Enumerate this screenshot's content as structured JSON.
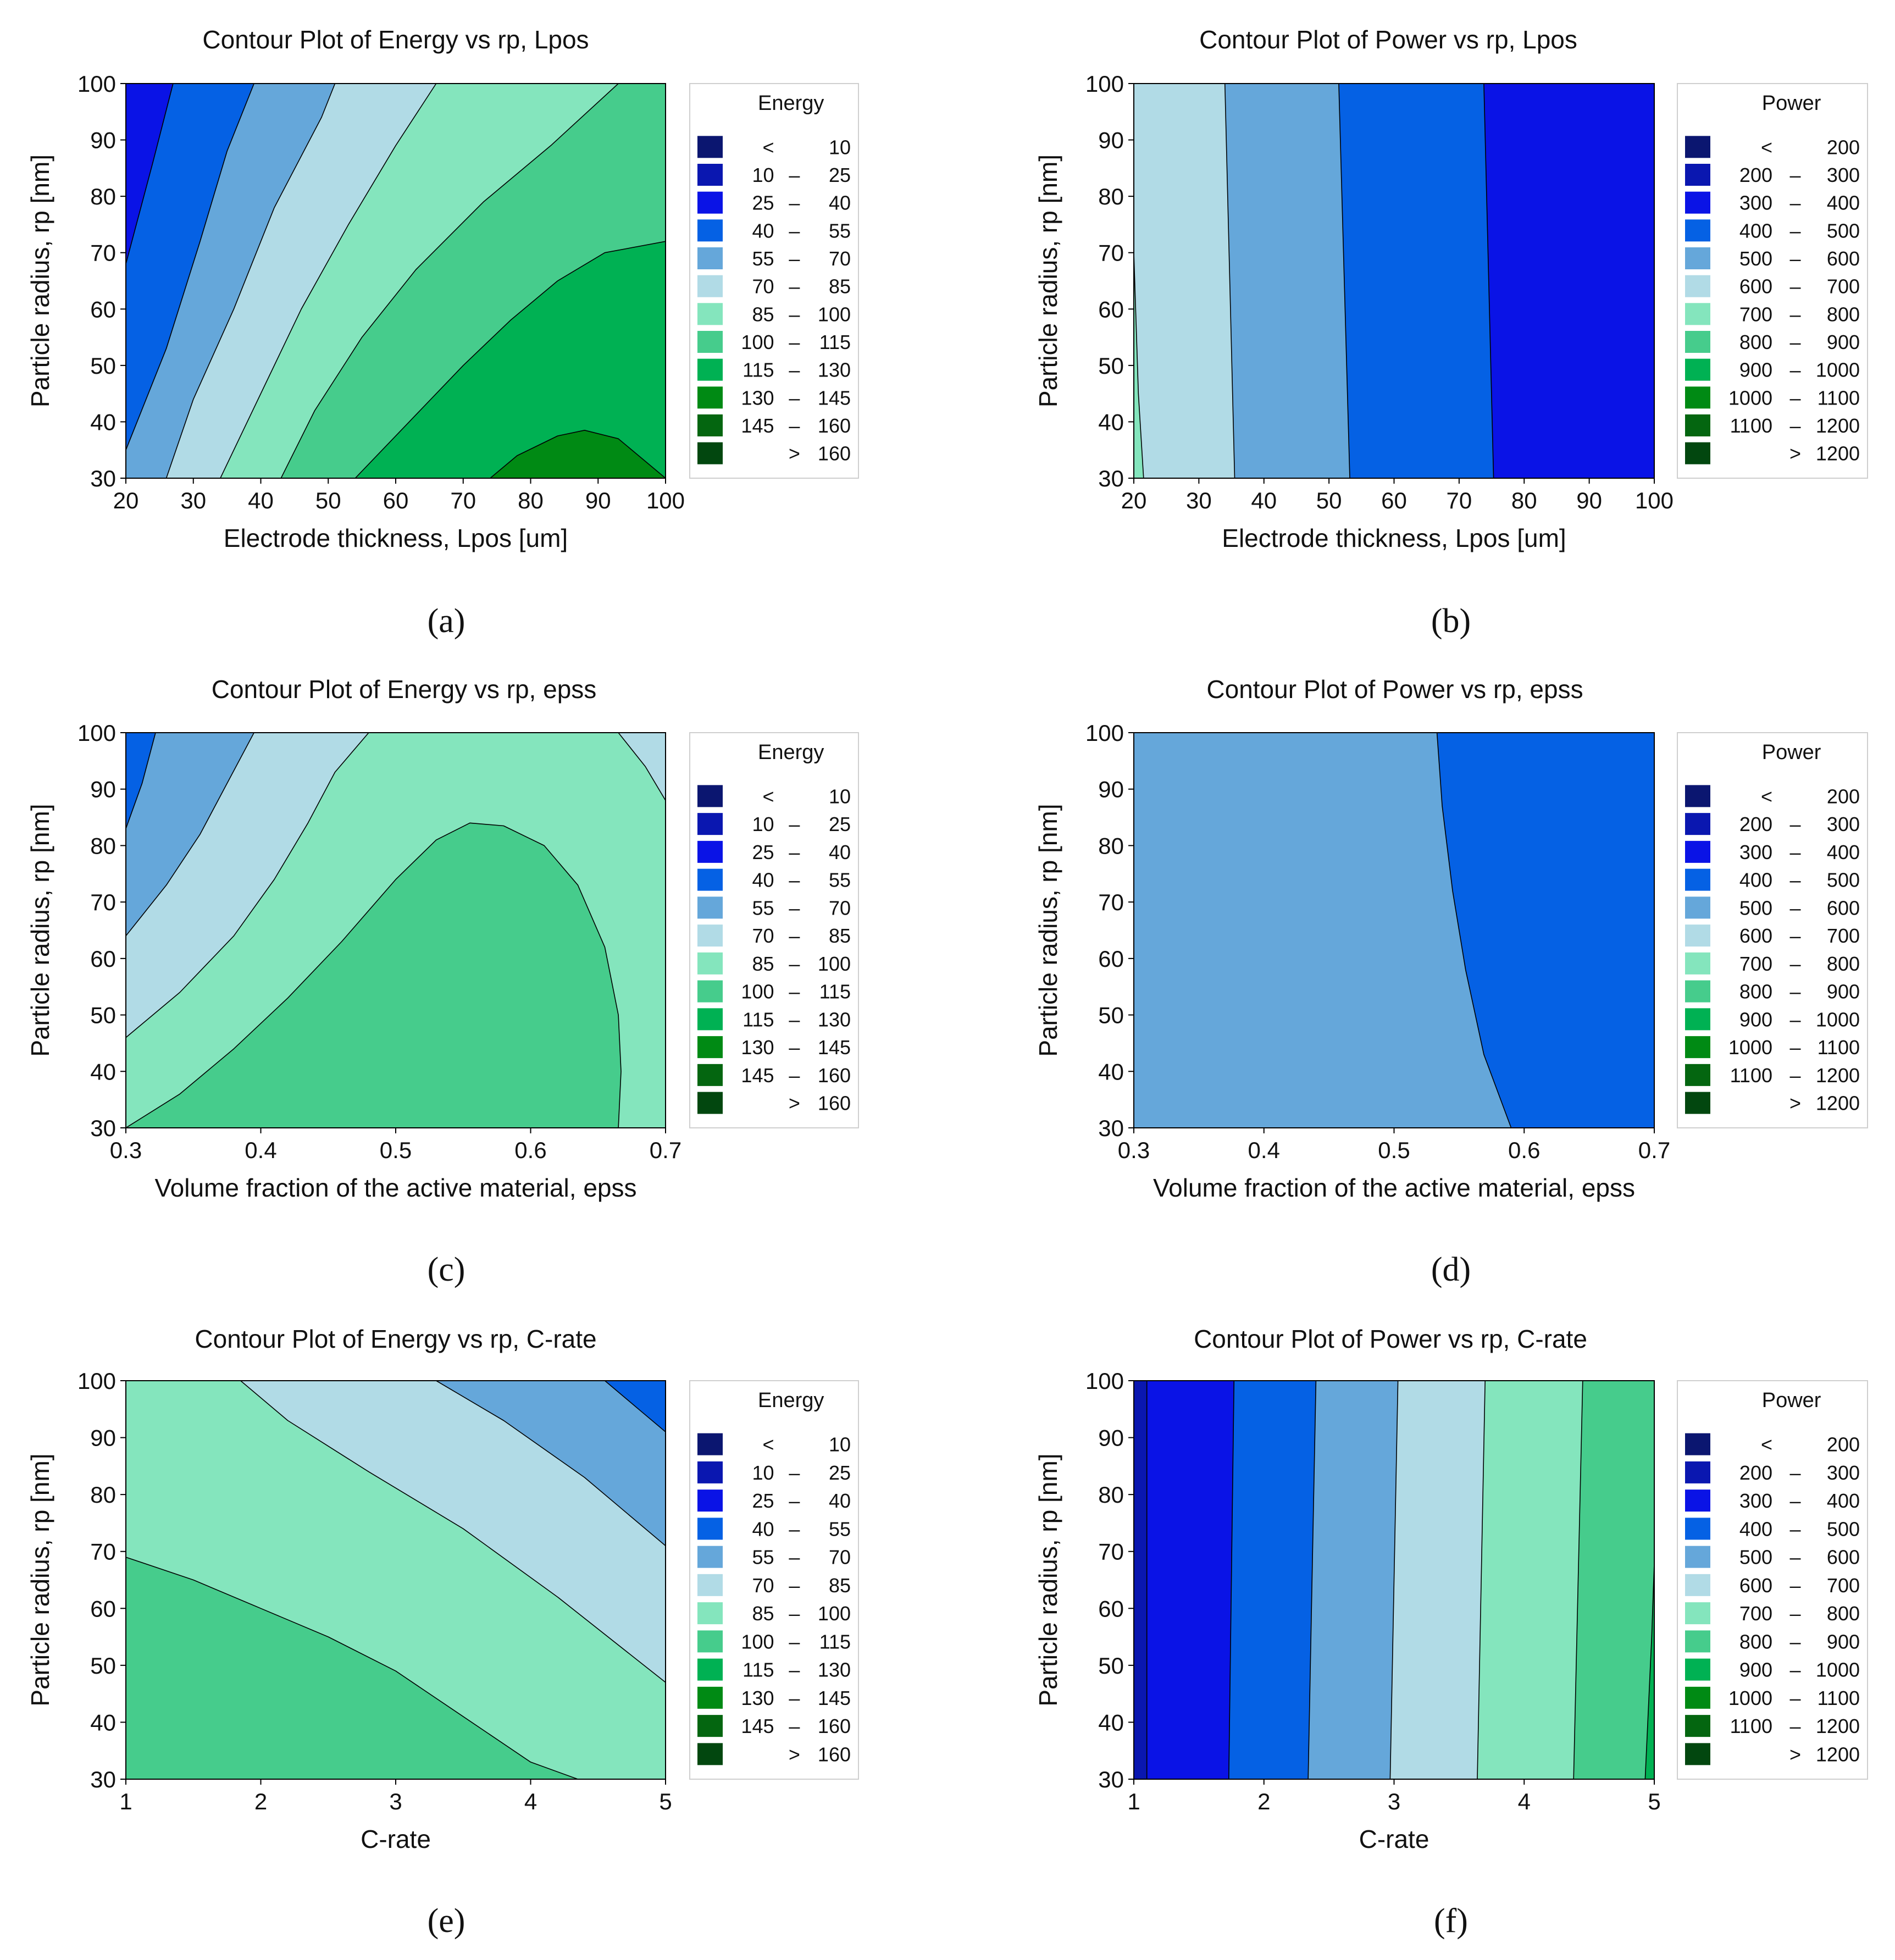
{
  "legend_scales": {
    "energy": {
      "title": "Energy",
      "rows": [
        {
          "lo": "<",
          "dash": "",
          "hi": "10",
          "color": "#0b1670"
        },
        {
          "lo": "10",
          "dash": "–",
          "hi": "25",
          "color": "#0a17b0"
        },
        {
          "lo": "25",
          "dash": "–",
          "hi": "40",
          "color": "#0a13e6"
        },
        {
          "lo": "40",
          "dash": "–",
          "hi": "55",
          "color": "#0561e4"
        },
        {
          "lo": "55",
          "dash": "–",
          "hi": "70",
          "color": "#65a7da"
        },
        {
          "lo": "70",
          "dash": "–",
          "hi": "85",
          "color": "#b1dbe6"
        },
        {
          "lo": "85",
          "dash": "–",
          "hi": "100",
          "color": "#84e5bd"
        },
        {
          "lo": "100",
          "dash": "–",
          "hi": "115",
          "color": "#46cc8c"
        },
        {
          "lo": "115",
          "dash": "–",
          "hi": "130",
          "color": "#00b153"
        },
        {
          "lo": "130",
          "dash": "–",
          "hi": "145",
          "color": "#008a14"
        },
        {
          "lo": "145",
          "dash": "–",
          "hi": "160",
          "color": "#046610"
        },
        {
          "lo": "",
          "dash": ">",
          "hi": "160",
          "color": "#02470f"
        }
      ]
    },
    "power": {
      "title": "Power",
      "rows": [
        {
          "lo": "<",
          "dash": "",
          "hi": "200",
          "color": "#0b1670"
        },
        {
          "lo": "200",
          "dash": "–",
          "hi": "300",
          "color": "#0a17b0"
        },
        {
          "lo": "300",
          "dash": "–",
          "hi": "400",
          "color": "#0a13e6"
        },
        {
          "lo": "400",
          "dash": "–",
          "hi": "500",
          "color": "#0561e4"
        },
        {
          "lo": "500",
          "dash": "–",
          "hi": "600",
          "color": "#65a7da"
        },
        {
          "lo": "600",
          "dash": "–",
          "hi": "700",
          "color": "#b1dbe6"
        },
        {
          "lo": "700",
          "dash": "–",
          "hi": "800",
          "color": "#84e5bd"
        },
        {
          "lo": "800",
          "dash": "–",
          "hi": "900",
          "color": "#46cc8c"
        },
        {
          "lo": "900",
          "dash": "–",
          "hi": "1000",
          "color": "#00b153"
        },
        {
          "lo": "1000",
          "dash": "–",
          "hi": "1100",
          "color": "#008a14"
        },
        {
          "lo": "1100",
          "dash": "–",
          "hi": "1200",
          "color": "#046610"
        },
        {
          "lo": "",
          "dash": ">",
          "hi": "1200",
          "color": "#02470f"
        }
      ]
    }
  },
  "chart_data": [
    {
      "type": "contour",
      "panel": "a",
      "caption": "(a)",
      "title": "Contour Plot of Energy vs rp, Lpos",
      "xlabel": "Electrode thickness, Lpos [um]",
      "ylabel": "Particle radius, rp [nm]",
      "xlim": [
        20,
        100
      ],
      "ylim": [
        30,
        100
      ],
      "xticks": [
        20,
        30,
        40,
        50,
        60,
        70,
        80,
        90,
        100
      ],
      "yticks": [
        30,
        40,
        50,
        60,
        70,
        80,
        90,
        100
      ],
      "legend": "energy",
      "background_band": 7,
      "regions": [
        {
          "band": 8,
          "points": [
            [
              54,
              30
            ],
            [
              62,
              40
            ],
            [
              70,
              50
            ],
            [
              77,
              58
            ],
            [
              84,
              65
            ],
            [
              91,
              70
            ],
            [
              100,
              72
            ],
            [
              100,
              30
            ]
          ]
        },
        {
          "band": 9,
          "points": [
            [
              74,
              30
            ],
            [
              78,
              34
            ],
            [
              84,
              37.5
            ],
            [
              88,
              38.5
            ],
            [
              93,
              37
            ],
            [
              97,
              33
            ],
            [
              100,
              30
            ]
          ]
        },
        {
          "band": 6,
          "points": [
            [
              20,
              100
            ],
            [
              20,
              30
            ],
            [
              43,
              30
            ],
            [
              48,
              42
            ],
            [
              55,
              55
            ],
            [
              63,
              67
            ],
            [
              73,
              79
            ],
            [
              83,
              89
            ],
            [
              93,
              100
            ]
          ]
        },
        {
          "band": 5,
          "points": [
            [
              20,
              100
            ],
            [
              20,
              30
            ],
            [
              34,
              30
            ],
            [
              40,
              45
            ],
            [
              46,
              60
            ],
            [
              53,
              75
            ],
            [
              60,
              89
            ],
            [
              66,
              100
            ]
          ]
        },
        {
          "band": 4,
          "points": [
            [
              20,
              100
            ],
            [
              20,
              30
            ],
            [
              26,
              30
            ],
            [
              30,
              44
            ],
            [
              36,
              60
            ],
            [
              42,
              78
            ],
            [
              49,
              94
            ],
            [
              51,
              100
            ]
          ]
        },
        {
          "band": 3,
          "points": [
            [
              20,
              100
            ],
            [
              20,
              35
            ],
            [
              26,
              53
            ],
            [
              31,
              72
            ],
            [
              35,
              88
            ],
            [
              39,
              100
            ]
          ]
        },
        {
          "band": 2,
          "points": [
            [
              20,
              100
            ],
            [
              20,
              68
            ],
            [
              24,
              86
            ],
            [
              27,
              100
            ]
          ]
        }
      ]
    },
    {
      "type": "contour",
      "panel": "b",
      "caption": "(b)",
      "title": "Contour Plot of Power vs rp, Lpos",
      "xlabel": "Electrode thickness, Lpos [um]",
      "ylabel": "Particle radius, rp [nm]",
      "xlim": [
        20,
        100
      ],
      "ylim": [
        30,
        100
      ],
      "xticks": [
        20,
        30,
        40,
        50,
        60,
        70,
        80,
        90,
        100
      ],
      "yticks": [
        30,
        40,
        50,
        60,
        70,
        80,
        90,
        100
      ],
      "legend": "power",
      "background_band": 2,
      "regions": [
        {
          "band": 3,
          "points": [
            [
              20,
              30
            ],
            [
              20,
              100
            ],
            [
              73.8,
              100
            ],
            [
              75.3,
              30
            ]
          ]
        },
        {
          "band": 4,
          "points": [
            [
              20,
              30
            ],
            [
              20,
              100
            ],
            [
              51.5,
              100
            ],
            [
              53.2,
              30
            ]
          ]
        },
        {
          "band": 5,
          "points": [
            [
              20,
              30
            ],
            [
              20,
              100
            ],
            [
              34,
              100
            ],
            [
              35.5,
              30
            ]
          ]
        },
        {
          "band": 6,
          "points": [
            [
              20,
              30
            ],
            [
              20,
              70
            ],
            [
              20.7,
              45
            ],
            [
              21.5,
              30
            ]
          ]
        }
      ]
    },
    {
      "type": "contour",
      "panel": "c",
      "caption": "(c)",
      "title": "Contour Plot of Energy vs rp, epss",
      "xlabel": "Volume fraction of the active material, epss",
      "ylabel": "Particle radius, rp [nm]",
      "xlim": [
        0.3,
        0.7
      ],
      "ylim": [
        30,
        100
      ],
      "xticks": [
        0.3,
        0.4,
        0.5,
        0.6,
        0.7
      ],
      "yticks": [
        30,
        40,
        50,
        60,
        70,
        80,
        90,
        100
      ],
      "legend": "energy",
      "background_band": 6,
      "regions": [
        {
          "band": 7,
          "points": [
            [
              0.3,
              30
            ],
            [
              0.34,
              36
            ],
            [
              0.38,
              44
            ],
            [
              0.42,
              53
            ],
            [
              0.46,
              63
            ],
            [
              0.5,
              74
            ],
            [
              0.53,
              81
            ],
            [
              0.555,
              84
            ],
            [
              0.58,
              83.5
            ],
            [
              0.61,
              80
            ],
            [
              0.635,
              73
            ],
            [
              0.655,
              62
            ],
            [
              0.665,
              50
            ],
            [
              0.667,
              40
            ],
            [
              0.665,
              30
            ]
          ]
        },
        {
          "band": 5,
          "points": [
            [
              0.3,
              46
            ],
            [
              0.34,
              54
            ],
            [
              0.38,
              64
            ],
            [
              0.41,
              74
            ],
            [
              0.435,
              84
            ],
            [
              0.455,
              93
            ],
            [
              0.48,
              100
            ],
            [
              0.3,
              100
            ]
          ]
        },
        {
          "band": 5,
          "points": [
            [
              0.665,
              100
            ],
            [
              0.7,
              100
            ],
            [
              0.7,
              88
            ],
            [
              0.685,
              94
            ]
          ]
        },
        {
          "band": 4,
          "points": [
            [
              0.3,
              64
            ],
            [
              0.33,
              73
            ],
            [
              0.355,
              82
            ],
            [
              0.375,
              91
            ],
            [
              0.395,
              100
            ],
            [
              0.3,
              100
            ]
          ]
        },
        {
          "band": 3,
          "points": [
            [
              0.3,
              83
            ],
            [
              0.312,
              91
            ],
            [
              0.322,
              100
            ],
            [
              0.3,
              100
            ]
          ]
        }
      ]
    },
    {
      "type": "contour",
      "panel": "d",
      "caption": "(d)",
      "title": "Contour Plot of Power vs rp, epss",
      "xlabel": "Volume fraction of the active material, epss",
      "ylabel": "Particle radius, rp [nm]",
      "xlim": [
        0.3,
        0.7
      ],
      "ylim": [
        30,
        100
      ],
      "xticks": [
        0.3,
        0.4,
        0.5,
        0.6,
        0.7
      ],
      "yticks": [
        30,
        40,
        50,
        60,
        70,
        80,
        90,
        100
      ],
      "legend": "power",
      "background_band": 4,
      "regions": [
        {
          "band": 3,
          "points": [
            [
              0.533,
              100
            ],
            [
              0.537,
              87
            ],
            [
              0.545,
              72
            ],
            [
              0.555,
              58
            ],
            [
              0.569,
              43
            ],
            [
              0.59,
              30
            ],
            [
              0.7,
              30
            ],
            [
              0.7,
              100
            ]
          ]
        }
      ]
    },
    {
      "type": "contour",
      "panel": "e",
      "caption": "(e)",
      "title": "Contour Plot of Energy vs rp, C-rate",
      "xlabel": "C-rate",
      "ylabel": "Particle radius, rp [nm]",
      "xlim": [
        1,
        5
      ],
      "ylim": [
        30,
        100
      ],
      "xticks": [
        1,
        2,
        3,
        4,
        5
      ],
      "yticks": [
        30,
        40,
        50,
        60,
        70,
        80,
        90,
        100
      ],
      "legend": "energy",
      "background_band": 6,
      "regions": [
        {
          "band": 7,
          "points": [
            [
              1,
              30
            ],
            [
              1,
              69
            ],
            [
              1.5,
              65
            ],
            [
              2,
              60
            ],
            [
              2.5,
              55
            ],
            [
              3,
              49
            ],
            [
              3.5,
              41
            ],
            [
              4,
              33
            ],
            [
              4.35,
              30
            ]
          ]
        },
        {
          "band": 5,
          "points": [
            [
              1.85,
              100
            ],
            [
              2.2,
              93
            ],
            [
              2.8,
              84
            ],
            [
              3.5,
              74
            ],
            [
              4.2,
              62
            ],
            [
              5,
              47
            ],
            [
              5,
              100
            ]
          ]
        },
        {
          "band": 4,
          "points": [
            [
              3.3,
              100
            ],
            [
              3.8,
              93
            ],
            [
              4.4,
              83
            ],
            [
              5,
              71
            ],
            [
              5,
              100
            ]
          ]
        },
        {
          "band": 3,
          "points": [
            [
              4.55,
              100
            ],
            [
              4.8,
              95
            ],
            [
              5,
              91
            ],
            [
              5,
              100
            ]
          ]
        }
      ]
    },
    {
      "type": "contour",
      "panel": "f",
      "caption": "(f)",
      "title": "Contour Plot of Power vs rp, C-rate",
      "xlabel": "C-rate",
      "ylabel": "Particle radius, rp [nm]",
      "xlim": [
        1,
        5
      ],
      "ylim": [
        30,
        100
      ],
      "xticks": [
        1,
        2,
        3,
        4,
        5
      ],
      "yticks": [
        30,
        40,
        50,
        60,
        70,
        80,
        90,
        100
      ],
      "legend": "power",
      "background_band": 7,
      "regions": [
        {
          "band": 6,
          "points": [
            [
              1,
              30
            ],
            [
              1,
              100
            ],
            [
              4.45,
              100
            ],
            [
              4.38,
              30
            ]
          ]
        },
        {
          "band": 5,
          "points": [
            [
              1,
              30
            ],
            [
              1,
              100
            ],
            [
              3.7,
              100
            ],
            [
              3.64,
              30
            ]
          ]
        },
        {
          "band": 4,
          "points": [
            [
              1,
              30
            ],
            [
              1,
              100
            ],
            [
              3.03,
              100
            ],
            [
              2.97,
              30
            ]
          ]
        },
        {
          "band": 3,
          "points": [
            [
              1,
              30
            ],
            [
              1,
              100
            ],
            [
              2.4,
              100
            ],
            [
              2.34,
              30
            ]
          ]
        },
        {
          "band": 2,
          "points": [
            [
              1,
              30
            ],
            [
              1,
              100
            ],
            [
              1.77,
              100
            ],
            [
              1.73,
              30
            ]
          ]
        },
        {
          "band": 1,
          "points": [
            [
              1,
              30
            ],
            [
              1,
              100
            ],
            [
              1.1,
              100
            ],
            [
              1.1,
              30
            ]
          ]
        },
        {
          "band": 8,
          "points": [
            [
              5,
              30
            ],
            [
              5,
              68
            ],
            [
              4.98,
              55
            ],
            [
              4.93,
              30
            ]
          ]
        }
      ]
    }
  ]
}
